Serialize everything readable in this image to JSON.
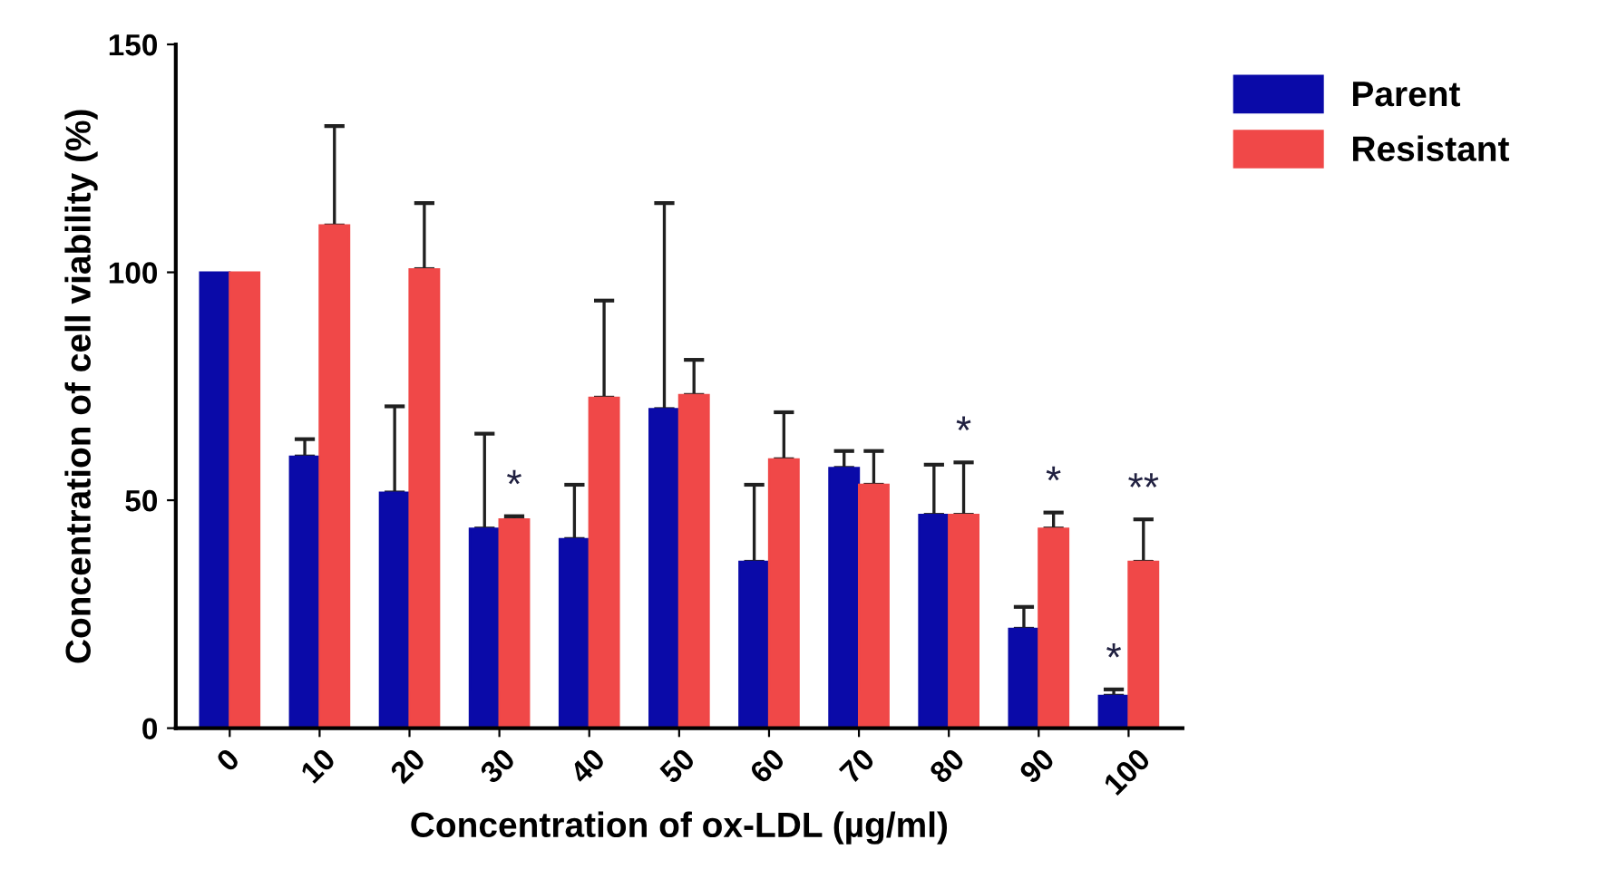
{
  "chart_data": {
    "type": "bar",
    "xlabel": "Concentration of ox-LDL (µg/ml)",
    "ylabel": "Concentration of cell viability (%)",
    "categories": [
      "0",
      "10",
      "20",
      "30",
      "40",
      "50",
      "60",
      "70",
      "80",
      "90",
      "100"
    ],
    "series": [
      {
        "name": "Parent",
        "color": "#0a0aa8",
        "values": [
          100,
          59.6,
          51.7,
          43.8,
          41.5,
          70.0,
          36.5,
          57.1,
          46.8,
          21.8,
          7.1
        ],
        "errors": [
          null,
          [
            59.6,
            63.4
          ],
          [
            51.7,
            70.6
          ],
          [
            43.8,
            64.6
          ],
          [
            41.5,
            53.4
          ],
          [
            70.0,
            115.2
          ],
          [
            36.5,
            53.4
          ],
          [
            57.1,
            60.8
          ],
          [
            46.8,
            57.8
          ],
          [
            21.8,
            26.6
          ],
          [
            7.1,
            8.5
          ]
        ]
      },
      {
        "name": "Resistant",
        "color": "#f04848",
        "values": [
          100,
          110.3,
          100.7,
          45.8,
          72.5,
          73.1,
          59.0,
          53.4,
          46.8,
          43.8,
          36.5
        ],
        "errors": [
          null,
          [
            110.3,
            132.1
          ],
          [
            100.7,
            115.2
          ],
          [
            45.8,
            46.5
          ],
          [
            72.5,
            93.8
          ],
          [
            73.1,
            80.8
          ],
          [
            59.0,
            69.3
          ],
          [
            53.4,
            60.8
          ],
          [
            46.8,
            58.3
          ],
          [
            43.8,
            47.3
          ],
          [
            36.5,
            45.8
          ]
        ]
      }
    ],
    "annotations": [
      {
        "text": "*",
        "x": "30",
        "y": 46.5
      },
      {
        "text": "*",
        "x": "80",
        "y": 58.3
      },
      {
        "text": "*",
        "x": "90",
        "y": 47.3
      },
      {
        "text": "*",
        "x": "100",
        "y": 8.5
      },
      {
        "text": "**",
        "x": "100",
        "y": 45.8
      }
    ],
    "ylim": [
      0,
      150
    ],
    "yticks": [
      0,
      50,
      100,
      150
    ],
    "grid": false,
    "legend": "top right"
  }
}
